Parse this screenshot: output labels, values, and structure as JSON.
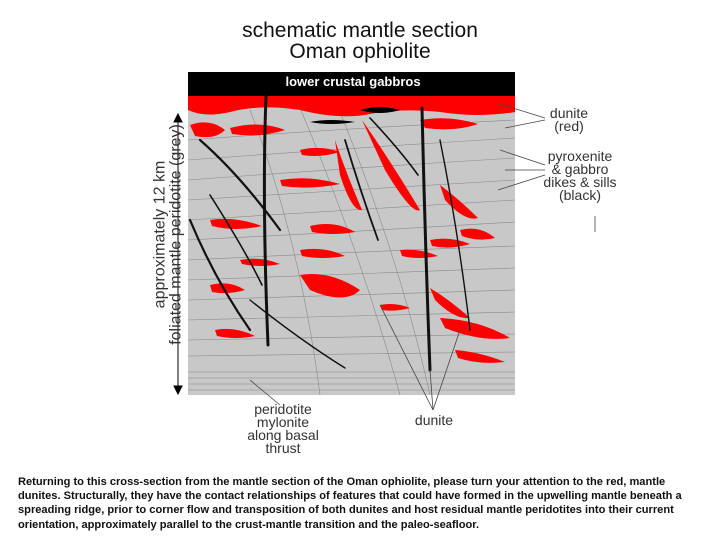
{
  "title": {
    "line1": "schematic  mantle  section",
    "line2": "Oman  ophiolite"
  },
  "diagram": {
    "top_band_label": "lower crustal gabbros",
    "side_label": {
      "line1": "approximately 12 km",
      "line2": "foliated mantle peridotite (grey)"
    },
    "right_labels": {
      "dunite_line1": "dunite",
      "dunite_line2": "(red)",
      "dikes_line1": "pyroxenite",
      "dikes_line2": "& gabbro",
      "dikes_line3": "dikes & sills",
      "dikes_line4": "(black)"
    },
    "bottom_labels": {
      "thrust_line1": "peridotite",
      "thrust_line2": "mylonite",
      "thrust_line3": "along basal",
      "thrust_line4": "thrust",
      "dunite": "dunite"
    },
    "colors": {
      "crust": "#000000",
      "dunite": "#ff0000",
      "peridotite": "#c8c8c8",
      "dikes": "#111111"
    }
  },
  "caption": "Returning to this cross-section from the mantle section of the Oman ophiolite, please turn your attention to the red, mantle dunites.  Structurally, they have the contact relationships of features that could have formed in the upwelling mantle beneath a spreading ridge, prior to corner flow and transposition of both  dunites and host residual mantle peridotites into their current orientation, approximately parallel to the crust-mantle transition and the  paleo-seafloor."
}
